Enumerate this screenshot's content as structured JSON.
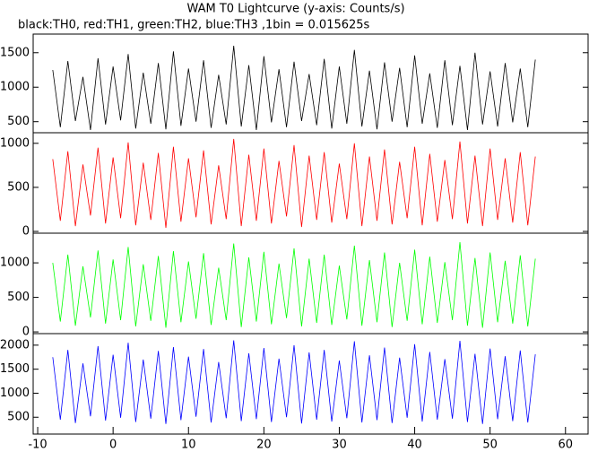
{
  "chart_data": [
    {
      "type": "line",
      "title": "WAM T0 Lightcurve (y-axis: Counts/s)",
      "subtitle": "black:TH0, red:TH1, green:TH2, blue:TH3 ,1bin = 0.015625s",
      "x": [
        -8,
        -7,
        -6,
        -5,
        -4,
        -3,
        -2,
        -1,
        0,
        1,
        2,
        3,
        4,
        5,
        6,
        7,
        8,
        9,
        10,
        11,
        12,
        13,
        14,
        15,
        16,
        17,
        18,
        19,
        20,
        21,
        22,
        23,
        24,
        25,
        26,
        27,
        28,
        29,
        30,
        31,
        32,
        33,
        34,
        35,
        36,
        37,
        38,
        39,
        40,
        41,
        42,
        43,
        44,
        45,
        46,
        47,
        48,
        49,
        50,
        51,
        52,
        53,
        54,
        55,
        56
      ],
      "xlim": [
        -10.6,
        63
      ],
      "ylim": [
        340,
        1770
      ],
      "yticks": [
        500,
        1000,
        1500
      ],
      "series": [
        {
          "color": "#000000",
          "values": [
            1250,
            420,
            1380,
            510,
            1150,
            380,
            1420,
            460,
            1300,
            520,
            1480,
            400,
            1210,
            470,
            1350,
            390,
            1520,
            440,
            1270,
            500,
            1390,
            410,
            1180,
            460,
            1600,
            430,
            1320,
            380,
            1450,
            490,
            1260,
            420,
            1370,
            510,
            1190,
            450,
            1410,
            400,
            1300,
            470,
            1540,
            430,
            1240,
            390,
            1360,
            500,
            1280,
            420,
            1460,
            470,
            1200,
            410,
            1390,
            450,
            1310,
            380,
            1500,
            460,
            1230,
            430,
            1350,
            490,
            1270,
            420,
            1400
          ]
        }
      ]
    },
    {
      "type": "line",
      "x": [
        -8,
        -7,
        -6,
        -5,
        -4,
        -3,
        -2,
        -1,
        0,
        1,
        2,
        3,
        4,
        5,
        6,
        7,
        8,
        9,
        10,
        11,
        12,
        13,
        14,
        15,
        16,
        17,
        18,
        19,
        20,
        21,
        22,
        23,
        24,
        25,
        26,
        27,
        28,
        29,
        30,
        31,
        32,
        33,
        34,
        35,
        36,
        37,
        38,
        39,
        40,
        41,
        42,
        43,
        44,
        45,
        46,
        47,
        48,
        49,
        50,
        51,
        52,
        53,
        54,
        55,
        56
      ],
      "xlim": [
        -10.6,
        63
      ],
      "ylim": [
        -20,
        1120
      ],
      "yticks": [
        0,
        500,
        1000
      ],
      "series": [
        {
          "color": "#ff0000",
          "values": [
            820,
            120,
            910,
            60,
            760,
            180,
            950,
            90,
            840,
            150,
            1010,
            70,
            780,
            130,
            890,
            40,
            960,
            110,
            830,
            160,
            920,
            80,
            750,
            140,
            1050,
            60,
            870,
            120,
            940,
            90,
            800,
            170,
            980,
            50,
            860,
            130,
            900,
            100,
            770,
            140,
            1000,
            60,
            850,
            120,
            930,
            80,
            790,
            150,
            960,
            70,
            880,
            110,
            810,
            140,
            1020,
            90,
            860,
            60,
            940,
            130,
            830,
            100,
            900,
            70,
            850
          ]
        }
      ]
    },
    {
      "type": "line",
      "x": [
        -8,
        -7,
        -6,
        -5,
        -4,
        -3,
        -2,
        -1,
        0,
        1,
        2,
        3,
        4,
        5,
        6,
        7,
        8,
        9,
        10,
        11,
        12,
        13,
        14,
        15,
        16,
        17,
        18,
        19,
        20,
        21,
        22,
        23,
        24,
        25,
        26,
        27,
        28,
        29,
        30,
        31,
        32,
        33,
        34,
        35,
        36,
        37,
        38,
        39,
        40,
        41,
        42,
        43,
        44,
        45,
        46,
        47,
        48,
        49,
        50,
        51,
        52,
        53,
        54,
        55,
        56
      ],
      "xlim": [
        -10.6,
        63
      ],
      "ylim": [
        -25,
        1430
      ],
      "yticks": [
        0,
        500,
        1000
      ],
      "series": [
        {
          "color": "#00ff00",
          "values": [
            1000,
            150,
            1120,
            90,
            950,
            210,
            1180,
            120,
            1050,
            170,
            1230,
            80,
            980,
            160,
            1100,
            60,
            1170,
            140,
            1020,
            190,
            1140,
            100,
            930,
            170,
            1280,
            70,
            1080,
            150,
            1160,
            110,
            990,
            200,
            1210,
            80,
            1060,
            130,
            1120,
            100,
            960,
            180,
            1250,
            90,
            1040,
            140,
            1150,
            70,
            1000,
            160,
            1190,
            110,
            1090,
            130,
            1010,
            170,
            1300,
            90,
            1070,
            60,
            1150,
            140,
            1030,
            120,
            1110,
            80,
            1060
          ]
        }
      ]
    },
    {
      "type": "line",
      "x": [
        -8,
        -7,
        -6,
        -5,
        -4,
        -3,
        -2,
        -1,
        0,
        1,
        2,
        3,
        4,
        5,
        6,
        7,
        8,
        9,
        10,
        11,
        12,
        13,
        14,
        15,
        16,
        17,
        18,
        19,
        20,
        21,
        22,
        23,
        24,
        25,
        26,
        27,
        28,
        29,
        30,
        31,
        32,
        33,
        34,
        35,
        36,
        37,
        38,
        39,
        40,
        41,
        42,
        43,
        44,
        45,
        46,
        47,
        48,
        49,
        50,
        51,
        52,
        53,
        54,
        55,
        56
      ],
      "xlim": [
        -10.6,
        63
      ],
      "ylim": [
        150,
        2240
      ],
      "yticks": [
        500,
        1000,
        1500,
        2000
      ],
      "xticks": [
        -10,
        0,
        10,
        20,
        30,
        40,
        50,
        60
      ],
      "series": [
        {
          "color": "#0000ff",
          "values": [
            1750,
            450,
            1900,
            380,
            1620,
            520,
            1980,
            430,
            1800,
            490,
            2050,
            400,
            1700,
            470,
            1880,
            360,
            1960,
            440,
            1760,
            510,
            1920,
            390,
            1650,
            480,
            2100,
            420,
            1830,
            460,
            1940,
            400,
            1720,
            500,
            2000,
            370,
            1850,
            450,
            1900,
            410,
            1680,
            480,
            2080,
            390,
            1790,
            440,
            1950,
            380,
            1740,
            490,
            2020,
            410,
            1860,
            450,
            1710,
            470,
            2090,
            400,
            1820,
            360,
            1930,
            460,
            1770,
            420,
            1890,
            390,
            1810
          ]
        }
      ]
    }
  ]
}
